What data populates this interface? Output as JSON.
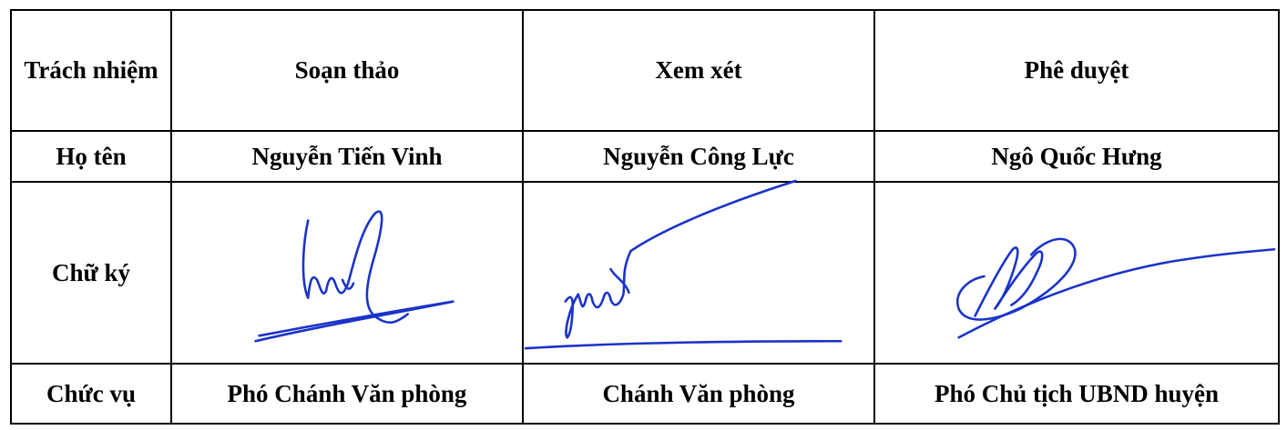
{
  "table": {
    "header": {
      "responsibility_label": "Trách nhiệm",
      "draft_label": "Soạn thảo",
      "review_label": "Xem xét",
      "approve_label": "Phê duyệt"
    },
    "names": {
      "row_label": "Họ tên",
      "drafter": "Nguyễn Tiến Vinh",
      "reviewer": "Nguyễn Công Lực",
      "approver": "Ngô Quốc Hưng"
    },
    "signatures": {
      "row_label": "Chữ ký",
      "ink_color": "#1a33c9"
    },
    "positions": {
      "row_label": "Chức vụ",
      "drafter": "Phó Chánh Văn phòng",
      "reviewer": "Chánh Văn phòng",
      "approver": "Phó Chủ tịch UBND huyện"
    }
  }
}
